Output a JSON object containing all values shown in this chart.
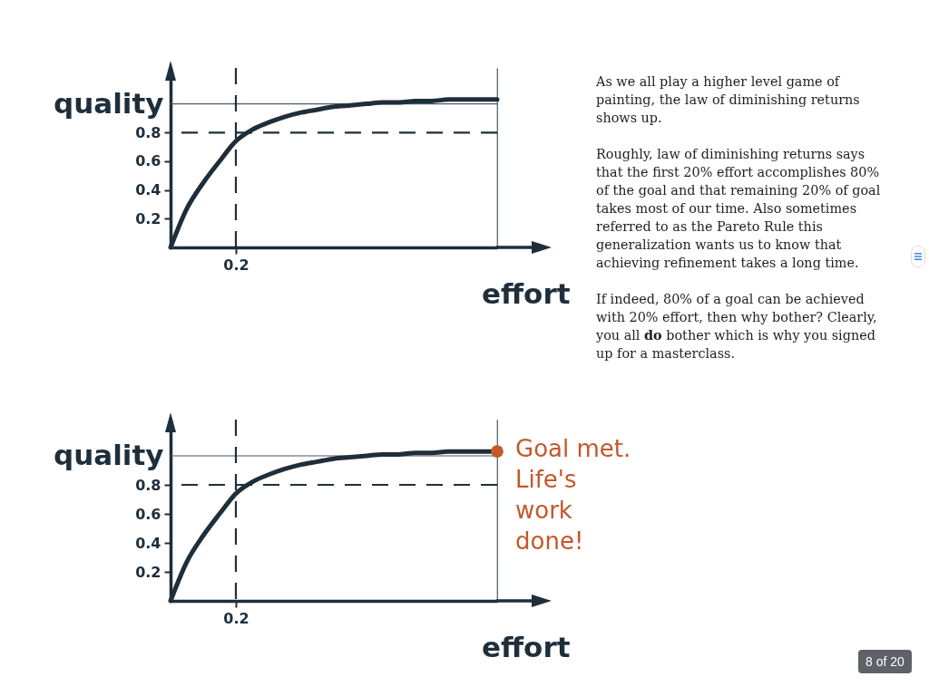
{
  "chart_data": [
    {
      "type": "line",
      "xlabel": "effort",
      "ylabel": "quality",
      "categories": [
        null,
        null,
        null,
        null,
        "0.2",
        null,
        null,
        null,
        null,
        null,
        null,
        null,
        null,
        null,
        null,
        null,
        null,
        null,
        null,
        null,
        null
      ],
      "series": [
        {
          "color": "#1e2e3b",
          "values": [
            0,
            0.27,
            0.45,
            0.6,
            0.74,
            0.82,
            0.87,
            0.91,
            0.94,
            0.96,
            0.98,
            0.99,
            1.0,
            1.01,
            1.01,
            1.02,
            1.02,
            1.03,
            1.03,
            1.03,
            1.03
          ]
        }
      ],
      "ylim": [
        0,
        1.25
      ],
      "yticks": [
        0.2,
        0.4,
        0.6,
        0.8
      ],
      "ref_lines": [
        {
          "axis": "y",
          "value": 1,
          "line_style": "solid",
          "color": "#4d5964"
        },
        {
          "axis": "y",
          "value": 0.8,
          "line_style": "dashed",
          "color": "#1e2e3b"
        },
        {
          "axis": "x",
          "value": "0.2",
          "line_style": "dashed",
          "color": "#1e2e3b"
        }
      ]
    },
    {
      "type": "other",
      "annotations": [
        "As we all play a higher level game of painting, the law of diminishing returns shows up.",
        "Roughly, law of diminishing returns says that the first 20% effort accomplishes 80% of the goal and that remaining 20% of goal takes most of our time. Also sometimes referred to as the Pareto Rule this generalization wants us to know that achieving refinement takes a long time.",
        "If indeed, 80% of a goal can be achieved with 20% effort, then why bother? Clearly, you all do bother which is why you signed up for a masterclass."
      ]
    },
    {
      "type": "line",
      "xlabel": "effort",
      "ylabel": "quality",
      "categories": [
        null,
        null,
        null,
        null,
        "0.2",
        null,
        null,
        null,
        null,
        null,
        null,
        null,
        null,
        null,
        null,
        null,
        null,
        null,
        null,
        null,
        null
      ],
      "series": [
        {
          "color": "#1e2e3b",
          "values": [
            0,
            0.27,
            0.45,
            0.6,
            0.74,
            0.82,
            0.87,
            0.91,
            0.94,
            0.96,
            0.98,
            0.99,
            1.0,
            1.01,
            1.01,
            1.02,
            1.02,
            1.03,
            1.03,
            1.03,
            1.03
          ]
        },
        {
          "type": "scatter",
          "color": "#c4582b",
          "values": [
            null,
            null,
            null,
            null,
            null,
            null,
            null,
            null,
            null,
            null,
            null,
            null,
            null,
            null,
            null,
            null,
            null,
            null,
            null,
            null,
            1.03
          ]
        }
      ],
      "ylim": [
        0,
        1.25
      ],
      "yticks": [
        0.2,
        0.4,
        0.6,
        0.8
      ],
      "ref_lines": [
        {
          "axis": "y",
          "value": 1,
          "line_style": "solid",
          "color": "#4d5964"
        },
        {
          "axis": "y",
          "value": 0.8,
          "line_style": "dashed",
          "color": "#1e2e3b"
        },
        {
          "axis": "x",
          "value": "0.2",
          "line_style": "dashed",
          "color": "#1e2e3b"
        }
      ],
      "annotations": [
        "Goal met. Life's work done!"
      ]
    },
    {
      "type": "other",
      "annotations": [
        "8 of 20"
      ]
    }
  ]
}
